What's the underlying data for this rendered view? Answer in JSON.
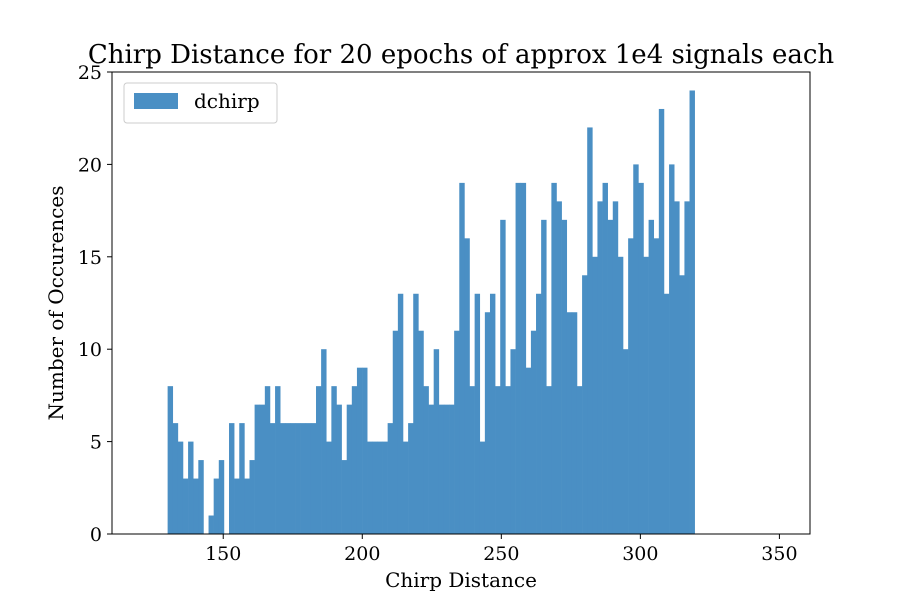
{
  "chart_data": {
    "type": "bar",
    "title": "Chirp Distance for 20 epochs of approx 1e4 signals each",
    "xlabel": "Chirp Distance",
    "ylabel": "Number of Occurences",
    "xlim": [
      110,
      361
    ],
    "ylim": [
      0,
      25
    ],
    "xticks": [
      150,
      200,
      250,
      300,
      350
    ],
    "yticks": [
      0,
      5,
      10,
      15,
      20,
      25
    ],
    "bin_start": 130,
    "bin_width": 1.84,
    "legend_position": "top-left",
    "series": [
      {
        "name": "dchirp",
        "color": "#4a8fc4",
        "values": [
          8,
          6,
          5,
          3,
          5,
          3,
          4,
          0,
          1,
          3,
          4,
          0,
          6,
          3,
          6,
          3,
          4,
          7,
          7,
          8,
          6,
          8,
          6,
          6,
          6,
          6,
          6,
          6,
          6,
          8,
          10,
          5,
          8,
          7,
          4,
          7,
          8,
          9,
          9,
          5,
          5,
          5,
          5,
          6,
          11,
          13,
          5,
          6,
          13,
          11,
          8,
          7,
          10,
          7,
          7,
          7,
          11,
          19,
          16,
          8,
          13,
          5,
          12,
          13,
          8,
          17,
          8,
          10,
          19,
          19,
          9,
          11,
          13,
          17,
          8,
          19,
          18,
          17,
          12,
          12,
          8,
          14,
          22,
          15,
          18,
          19,
          17,
          18,
          15,
          10,
          16,
          20,
          19,
          15,
          17,
          16,
          23,
          13,
          20,
          18,
          14,
          18,
          24
        ]
      }
    ]
  }
}
